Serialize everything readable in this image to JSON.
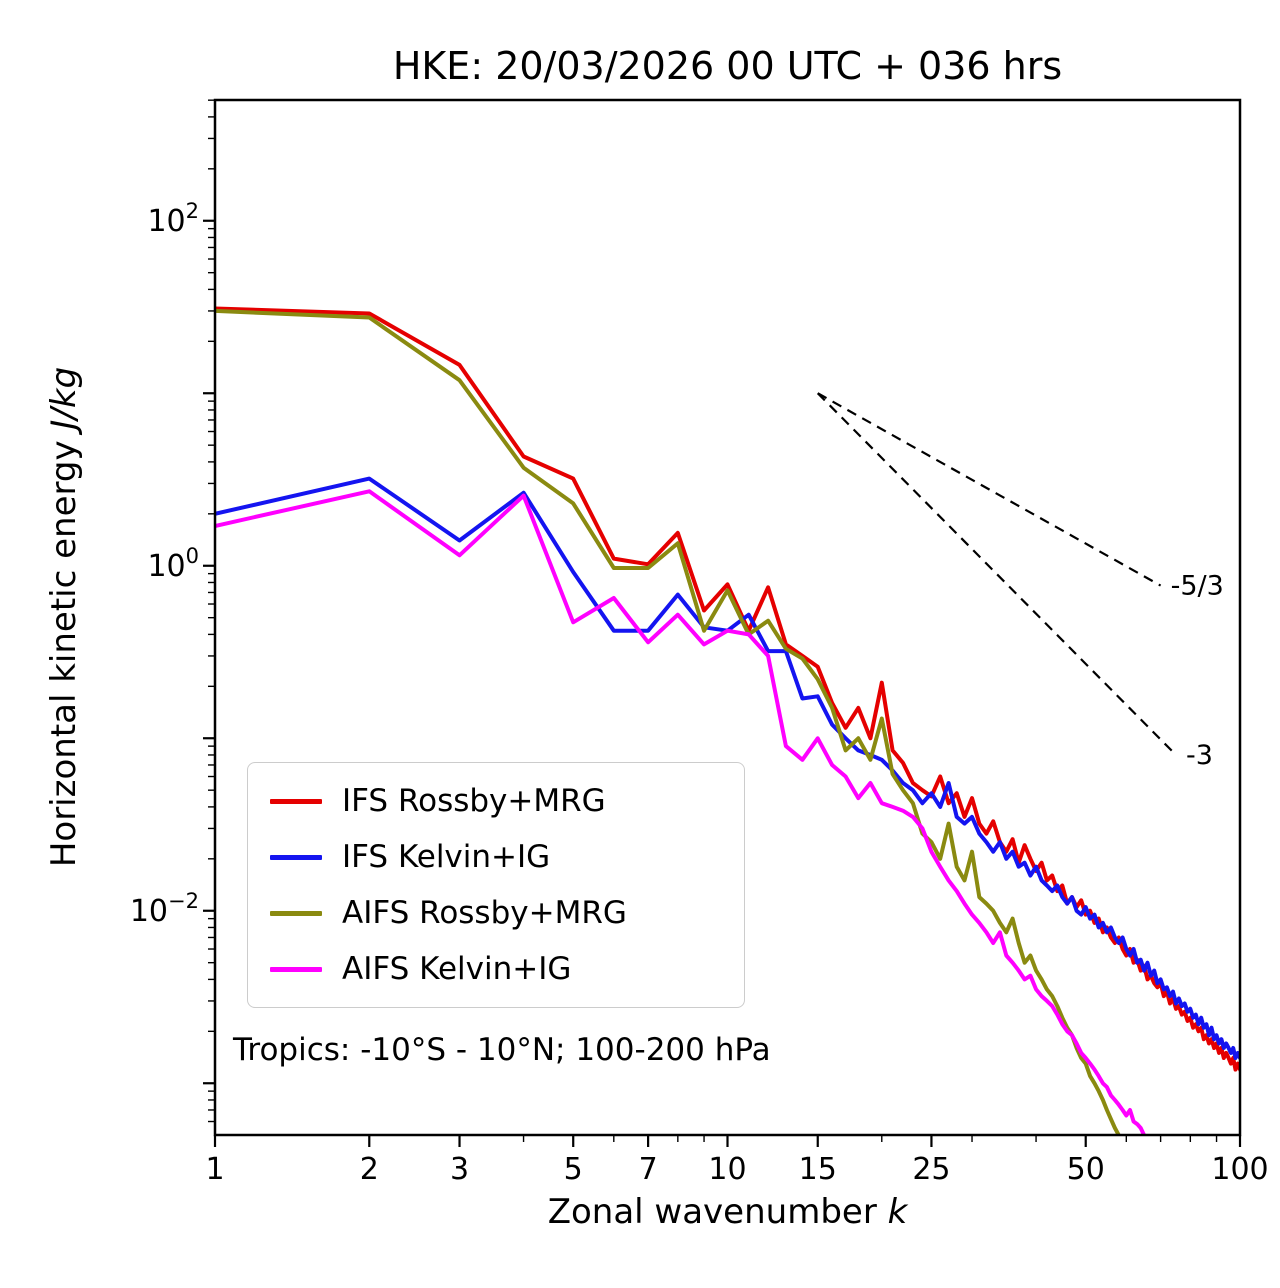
{
  "chart_data": {
    "type": "line",
    "title": "HKE: 20/03/2026 00 UTC + 036 hrs",
    "xlabel_text": "Zonal wavenumber ",
    "xlabel_italic": "k",
    "ylabel_text": "Horizontal kinetic energy ",
    "ylabel_italic": "J/kg",
    "annotation": "Tropics: -10°S - 10°N; 100-200 hPa",
    "xscale": "log",
    "yscale": "log",
    "grid": false,
    "legend_position": "lower-left",
    "xlim": [
      1,
      100
    ],
    "ylim_exponents": [
      -3.3,
      2.7
    ],
    "xticks": [
      1,
      2,
      3,
      5,
      7,
      10,
      15,
      25,
      50,
      100
    ],
    "xticks_minor": [
      4,
      6,
      8,
      9,
      20,
      30,
      40,
      60,
      70,
      80,
      90
    ],
    "ytick_exponents": [
      2,
      0,
      -2
    ],
    "x_start": 1,
    "x_step": 1,
    "series": [
      {
        "name": "IFS Rossby+MRG",
        "color": "#e50000",
        "values": [
          31,
          29,
          14.6,
          4.3,
          3.2,
          1.1,
          1.02,
          1.55,
          0.55,
          0.78,
          0.42,
          0.75,
          0.35,
          0.3,
          0.26,
          0.16,
          0.115,
          0.15,
          0.1,
          0.21,
          0.085,
          0.072,
          0.055,
          0.05,
          0.046,
          0.06,
          0.042,
          0.048,
          0.035,
          0.045,
          0.032,
          0.028,
          0.033,
          0.025,
          0.022,
          0.026,
          0.019,
          0.024,
          0.02,
          0.017,
          0.019,
          0.015,
          0.016,
          0.013,
          0.014,
          0.011,
          0.012,
          0.0105,
          0.0115,
          0.0095,
          0.01,
          0.0085,
          0.009,
          0.0075,
          0.008,
          0.007,
          0.0065,
          0.007,
          0.006,
          0.0055,
          0.006,
          0.005,
          0.0052,
          0.0045,
          0.0048,
          0.004,
          0.0042,
          0.0038,
          0.0036,
          0.0038,
          0.0032,
          0.0034,
          0.0029,
          0.0031,
          0.0027,
          0.0028,
          0.0025,
          0.0026,
          0.0023,
          0.0024,
          0.0021,
          0.0022,
          0.002,
          0.0021,
          0.0018,
          0.0019,
          0.0017,
          0.0018,
          0.0016,
          0.0017,
          0.0015,
          0.0016,
          0.0014,
          0.0015,
          0.0014,
          0.0013,
          0.0014,
          0.0012,
          0.0013,
          0.0012
        ]
      },
      {
        "name": "IFS Kelvin+IG",
        "color": "#1414f0",
        "values": [
          2.0,
          3.2,
          1.4,
          2.65,
          0.92,
          0.42,
          0.42,
          0.68,
          0.44,
          0.42,
          0.52,
          0.32,
          0.32,
          0.17,
          0.175,
          0.12,
          0.1,
          0.085,
          0.08,
          0.075,
          0.065,
          0.055,
          0.05,
          0.042,
          0.048,
          0.04,
          0.055,
          0.035,
          0.032,
          0.035,
          0.028,
          0.025,
          0.022,
          0.025,
          0.02,
          0.022,
          0.018,
          0.019,
          0.016,
          0.018,
          0.015,
          0.014,
          0.013,
          0.014,
          0.012,
          0.011,
          0.012,
          0.01,
          0.0095,
          0.0105,
          0.009,
          0.0095,
          0.008,
          0.0085,
          0.0075,
          0.008,
          0.007,
          0.0065,
          0.007,
          0.006,
          0.0055,
          0.006,
          0.005,
          0.0052,
          0.0045,
          0.005,
          0.0042,
          0.0045,
          0.0038,
          0.004,
          0.0035,
          0.0036,
          0.0032,
          0.0034,
          0.0029,
          0.0031,
          0.0028,
          0.0029,
          0.0026,
          0.0027,
          0.0024,
          0.0025,
          0.0022,
          0.0024,
          0.0021,
          0.0022,
          0.0019,
          0.0021,
          0.0018,
          0.0019,
          0.0017,
          0.0018,
          0.0016,
          0.0017,
          0.0016,
          0.0015,
          0.0016,
          0.0014,
          0.0015,
          0.0014
        ]
      },
      {
        "name": "AIFS Rossby+MRG",
        "color": "#8a8a10",
        "values": [
          30,
          27.5,
          11.9,
          3.7,
          2.3,
          0.97,
          0.97,
          1.35,
          0.42,
          0.72,
          0.4,
          0.48,
          0.33,
          0.29,
          0.22,
          0.15,
          0.085,
          0.1,
          0.075,
          0.13,
          0.062,
          0.05,
          0.042,
          0.028,
          0.025,
          0.02,
          0.032,
          0.018,
          0.015,
          0.022,
          0.012,
          0.011,
          0.01,
          0.0085,
          0.0075,
          0.009,
          0.0065,
          0.005,
          0.0055,
          0.0045,
          0.004,
          0.0035,
          0.0032,
          0.0028,
          0.0024,
          0.0021,
          0.0019,
          0.0016,
          0.0014,
          0.0013,
          0.0011,
          0.001,
          0.0009,
          0.0008,
          0.0007,
          0.00062,
          0.00055,
          0.0005,
          0.00044,
          0.0004,
          0.00035,
          0.0003,
          0.00027
        ]
      },
      {
        "name": "AIFS Kelvin+IG",
        "color": "#ff00ff",
        "values": [
          1.7,
          2.7,
          1.15,
          2.55,
          0.47,
          0.65,
          0.36,
          0.52,
          0.35,
          0.42,
          0.4,
          0.3,
          0.09,
          0.075,
          0.1,
          0.07,
          0.06,
          0.045,
          0.055,
          0.042,
          0.04,
          0.038,
          0.035,
          0.03,
          0.022,
          0.018,
          0.015,
          0.013,
          0.011,
          0.0095,
          0.0085,
          0.0075,
          0.0065,
          0.0075,
          0.0055,
          0.005,
          0.0045,
          0.004,
          0.0042,
          0.0035,
          0.0032,
          0.003,
          0.0028,
          0.0025,
          0.0022,
          0.002,
          0.0019,
          0.0017,
          0.0015,
          0.0014,
          0.0013,
          0.0012,
          0.0011,
          0.001,
          0.00095,
          0.00085,
          0.0008,
          0.00075,
          0.0007,
          0.00065,
          0.0007,
          0.0006,
          0.00058,
          0.00055,
          0.0005,
          0.00046,
          0.00042,
          0.0004,
          0.00038,
          0.00035
        ]
      }
    ],
    "reference_lines": [
      {
        "label": "-5/3",
        "slope": -1.6667,
        "x0": 15,
        "y0": 10,
        "x1": 70
      },
      {
        "label": "-3",
        "slope": -3,
        "x0": 15,
        "y0": 10,
        "x1": 75
      }
    ]
  }
}
